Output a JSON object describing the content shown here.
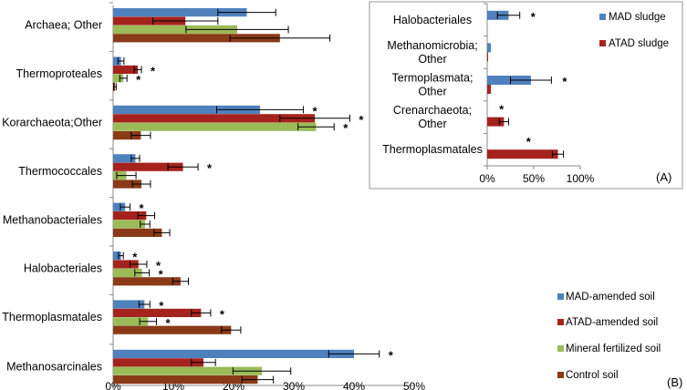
{
  "chart_data": [
    {
      "type": "bar",
      "orientation": "horizontal",
      "panel_label": "(B)",
      "categories": [
        "Archaea; Other",
        "Thermoproteales",
        "Korarchaeota;Other",
        "Thermococcales",
        "Methanobacteriales",
        "Halobacteriales",
        "Thermoplasmatales",
        "Methanosarcinales"
      ],
      "series": [
        {
          "name": "MAD-amended soil",
          "color": "#4f81bd",
          "values": [
            22.2,
            1.3,
            24.4,
            3.7,
            2.0,
            1.3,
            5.2,
            40.0
          ],
          "errors": [
            4.8,
            0.5,
            7.2,
            0.7,
            0.8,
            0.4,
            0.9,
            4.2
          ],
          "significant": [
            false,
            false,
            true,
            false,
            true,
            true,
            true,
            true
          ]
        },
        {
          "name": "ATAD-amended soil",
          "color": "#a5231d",
          "values": [
            12.0,
            4.1,
            33.5,
            11.6,
            5.5,
            4.2,
            14.6,
            15.0
          ],
          "errors": [
            5.4,
            0.6,
            5.8,
            2.5,
            1.4,
            1.4,
            1.6,
            2.0
          ],
          "significant": [
            false,
            true,
            true,
            true,
            false,
            true,
            true,
            false
          ]
        },
        {
          "name": "Mineral fertilized soil",
          "color": "#9bbb59",
          "values": [
            20.6,
            1.7,
            33.7,
            2.2,
            5.3,
            4.8,
            5.8,
            24.7
          ],
          "errors": [
            8.5,
            0.6,
            3.0,
            1.6,
            0.8,
            1.2,
            1.4,
            4.8
          ],
          "significant": [
            false,
            true,
            true,
            false,
            false,
            true,
            true,
            false
          ]
        },
        {
          "name": "Control soil",
          "color": "#8b3a17",
          "values": [
            27.7,
            0.3,
            4.6,
            4.7,
            8.1,
            11.2,
            19.6,
            24.0
          ],
          "errors": [
            8.3,
            0.2,
            1.6,
            1.5,
            1.3,
            1.3,
            1.6,
            2.6
          ],
          "significant": [
            false,
            false,
            false,
            false,
            false,
            false,
            false,
            false
          ]
        }
      ],
      "xlim": [
        0,
        50
      ],
      "x_ticks": [
        "0%",
        "10%",
        "20%",
        "30%",
        "40%",
        "50%"
      ],
      "significance_marker": "*",
      "legend_position": "bottom-right"
    },
    {
      "type": "bar",
      "orientation": "horizontal",
      "panel_label": "(A)",
      "categories": [
        "Halobacteriales",
        "Methanomicrobia; Other",
        "Termoplasmata; Other",
        "Crenarchaeota; Other",
        "Thermoplasmatales"
      ],
      "category_lines": [
        [
          "Halobacteriales"
        ],
        [
          "Methanomicrobia;",
          "Other"
        ],
        [
          "Termoplasmata;",
          "Other"
        ],
        [
          "Crenarchaeota;",
          "Other"
        ],
        [
          "Thermoplasmatales"
        ]
      ],
      "series": [
        {
          "name": "MAD sludge",
          "color": "#4f81bd",
          "values": [
            23,
            4,
            47,
            0,
            0
          ],
          "errors": [
            12,
            0,
            22,
            0,
            0
          ],
          "significant": [
            true,
            false,
            true,
            false,
            false
          ]
        },
        {
          "name": "ATAD sludge",
          "color": "#a5231d",
          "values": [
            0,
            1,
            4,
            18,
            76
          ],
          "errors": [
            0,
            0,
            0,
            5,
            6
          ],
          "significant": [
            false,
            false,
            false,
            true,
            true
          ]
        }
      ],
      "xlim": [
        0,
        100
      ],
      "x_ticks": [
        "0%",
        "50%",
        "100%"
      ],
      "significance_marker": "*",
      "legend_position": "top-right"
    }
  ]
}
